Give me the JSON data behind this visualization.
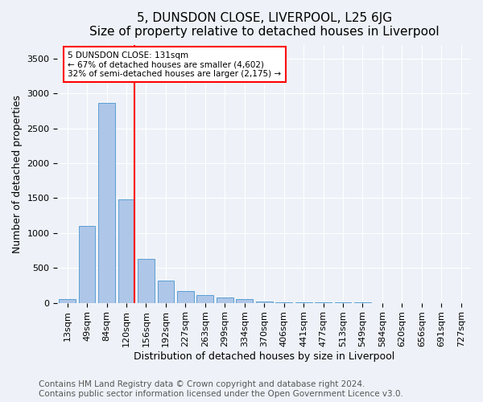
{
  "title": "5, DUNSDON CLOSE, LIVERPOOL, L25 6JG",
  "subtitle": "Size of property relative to detached houses in Liverpool",
  "xlabel": "Distribution of detached houses by size in Liverpool",
  "ylabel": "Number of detached properties",
  "footer_line1": "Contains HM Land Registry data © Crown copyright and database right 2024.",
  "footer_line2": "Contains public sector information licensed under the Open Government Licence v3.0.",
  "bin_labels": [
    "13sqm",
    "49sqm",
    "84sqm",
    "120sqm",
    "156sqm",
    "192sqm",
    "227sqm",
    "263sqm",
    "299sqm",
    "334sqm",
    "370sqm",
    "406sqm",
    "441sqm",
    "477sqm",
    "513sqm",
    "549sqm",
    "584sqm",
    "620sqm",
    "656sqm",
    "691sqm",
    "727sqm"
  ],
  "bar_values": [
    50,
    1100,
    2870,
    1480,
    630,
    320,
    165,
    105,
    75,
    55,
    20,
    10,
    8,
    5,
    3,
    2,
    1,
    1,
    1,
    1,
    0
  ],
  "bar_color": "#aec6e8",
  "bar_edge_color": "#5a9fd4",
  "vline_x": 3.4,
  "vline_color": "red",
  "annotation_line1": "5 DUNSDON CLOSE: 131sqm",
  "annotation_line2": "← 67% of detached houses are smaller (4,602)",
  "annotation_line3": "32% of semi-detached houses are larger (2,175) →",
  "ylim": [
    0,
    3700
  ],
  "yticks": [
    0,
    500,
    1000,
    1500,
    2000,
    2500,
    3000,
    3500
  ],
  "title_fontsize": 11,
  "axis_label_fontsize": 9,
  "tick_fontsize": 8,
  "footer_fontsize": 7.5,
  "background_color": "#eef2f8",
  "plot_bg_color": "#eef2f8"
}
